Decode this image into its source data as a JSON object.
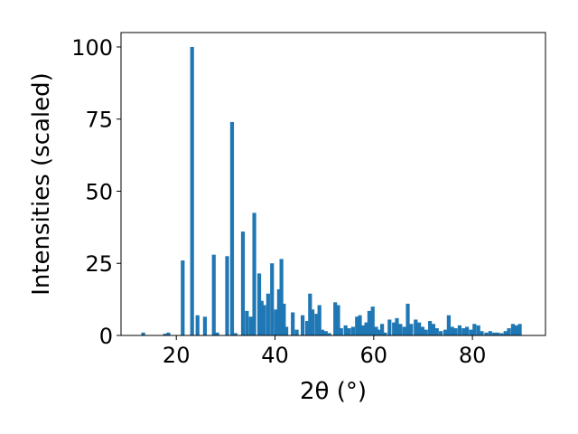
{
  "chart_data": {
    "type": "bar",
    "xlabel": "2θ (°)",
    "ylabel": "Intensities (scaled)",
    "xlim": [
      8.8,
      94.8
    ],
    "ylim": [
      0,
      105
    ],
    "xticks": [
      20,
      40,
      60,
      80
    ],
    "yticks": [
      0,
      25,
      50,
      75,
      100
    ],
    "grid": false,
    "bar_color": "#1f77b4",
    "x": [
      13.3,
      17.7,
      18.4,
      21.3,
      23.2,
      24.3,
      25.8,
      27.6,
      28.3,
      30.3,
      31.3,
      32.0,
      33.5,
      34.3,
      35.1,
      35.8,
      36.8,
      37.3,
      37.8,
      38.6,
      39.4,
      40.2,
      40.8,
      41.3,
      41.8,
      42.3,
      43.6,
      44.4,
      45.6,
      46.5,
      47.1,
      47.6,
      48.4,
      49.0,
      49.6,
      50.3,
      51.0,
      52.2,
      52.8,
      53.4,
      54.3,
      55.0,
      55.8,
      56.6,
      57.2,
      57.9,
      58.5,
      59.1,
      59.8,
      60.5,
      61.1,
      61.7,
      62.3,
      63.2,
      64.1,
      64.7,
      65.4,
      66.2,
      66.9,
      67.6,
      68.5,
      69.2,
      69.9,
      70.6,
      71.4,
      72.1,
      72.8,
      73.6,
      74.5,
      75.2,
      75.9,
      76.6,
      77.4,
      78.2,
      78.9,
      79.7,
      80.4,
      81.2,
      81.9,
      82.8,
      83.6,
      84.4,
      85.1,
      85.9,
      86.7,
      87.4,
      88.2,
      88.9,
      89.6
    ],
    "values": [
      1,
      0.6,
      1,
      26,
      100,
      7,
      6.5,
      28,
      1,
      27.5,
      74,
      0.8,
      36,
      8.5,
      6.5,
      42.5,
      21.5,
      12,
      10.5,
      14.5,
      25,
      9,
      16,
      26.5,
      11,
      3,
      8,
      2,
      7,
      5,
      14.5,
      9,
      7.5,
      10.5,
      2,
      1.5,
      0.8,
      11.5,
      10.5,
      2.5,
      3.5,
      2.5,
      3,
      6.5,
      7,
      3.5,
      4.5,
      8.5,
      10,
      3,
      2,
      4,
      1,
      5.5,
      4.5,
      6,
      4,
      3,
      11,
      4,
      5.5,
      4.5,
      3,
      2,
      5,
      4,
      2.5,
      1.5,
      2,
      7,
      3,
      2.5,
      3.5,
      2.5,
      3,
      2,
      4,
      3.5,
      1.5,
      1,
      1.5,
      1,
      1,
      0.8,
      1.5,
      2.5,
      4,
      3.5,
      4
    ]
  }
}
